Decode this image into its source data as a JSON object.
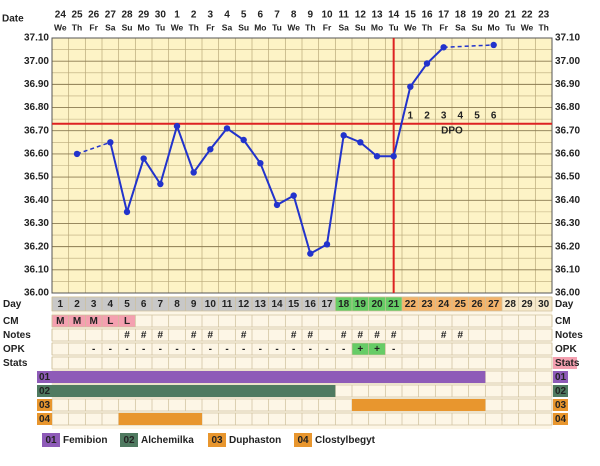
{
  "chart_data": {
    "type": "line",
    "date_label": "Date",
    "dates": [
      24,
      25,
      26,
      27,
      28,
      29,
      30,
      1,
      2,
      3,
      4,
      5,
      6,
      7,
      8,
      9,
      10,
      11,
      12,
      13,
      14,
      15,
      16,
      17,
      18,
      19,
      20,
      21,
      22,
      23
    ],
    "weekdays": [
      "We",
      "Th",
      "Fr",
      "Sa",
      "Su",
      "Mo",
      "Tu",
      "We",
      "Th",
      "Fr",
      "Sa",
      "Su",
      "Mo",
      "Tu",
      "We",
      "Th",
      "Fr",
      "Sa",
      "Su",
      "Mo",
      "Tu",
      "We",
      "Th",
      "Fr",
      "Sa",
      "Su",
      "Mo",
      "Tu",
      "We",
      "Th"
    ],
    "day_label": "Day",
    "categories": [
      1,
      2,
      3,
      4,
      5,
      6,
      7,
      8,
      9,
      10,
      11,
      12,
      13,
      14,
      15,
      16,
      17,
      18,
      19,
      20,
      21,
      22,
      23,
      24,
      25,
      26,
      27,
      28,
      29,
      30
    ],
    "day_colors": [
      "#c8c8c8",
      "#c8c8c8",
      "#c8c8c8",
      "#c8c8c8",
      "#c8c8c8",
      "#c8c8c8",
      "#c8c8c8",
      "#c8c8c8",
      "#c8c8c8",
      "#c8c8c8",
      "#c8c8c8",
      "#c8c8c8",
      "#c8c8c8",
      "#c8c8c8",
      "#c8c8c8",
      "#c8c8c8",
      "#c8c8c8",
      "#66cc66",
      "#66cc66",
      "#66cc66",
      "#66cc66",
      "#f3b36b",
      "#f3b36b",
      "#f3b36b",
      "#f3b36b",
      "#f3b36b",
      "#f3b36b",
      "#f7e9cc",
      "#f7e9cc",
      "#f7e9cc"
    ],
    "series": [
      {
        "color": "#2233cc",
        "values": [
          null,
          36.6,
          null,
          36.65,
          36.35,
          36.58,
          36.47,
          36.72,
          36.52,
          36.62,
          36.71,
          36.66,
          36.56,
          36.38,
          36.42,
          36.17,
          36.21,
          36.68,
          36.65,
          36.59,
          36.59,
          36.89,
          36.99,
          37.06,
          null,
          null,
          37.07,
          null,
          null,
          null
        ]
      }
    ],
    "ylim": [
      36.0,
      37.1
    ],
    "yticks": [
      {
        "value": 36.0,
        "label": "36.00"
      },
      {
        "value": 36.1,
        "label": "36.10"
      },
      {
        "value": 36.2,
        "label": "36.20"
      },
      {
        "value": 36.3,
        "label": "36.30"
      },
      {
        "value": 36.4,
        "label": "36.40"
      },
      {
        "value": 36.5,
        "label": "36.50"
      },
      {
        "value": 36.6,
        "label": "36.60"
      },
      {
        "value": 36.7,
        "label": "36.70"
      },
      {
        "value": 36.8,
        "label": "36.80"
      },
      {
        "value": 36.9,
        "label": "36.90"
      },
      {
        "value": 37.0,
        "label": "37.00"
      },
      {
        "value": 37.1,
        "label": "37.10"
      }
    ],
    "grid": true,
    "coverline": 36.73,
    "ovulation_day": 21,
    "line_color": "#dd2222",
    "dpo_label": "DPO",
    "dpo": [
      1,
      2,
      3,
      4,
      5,
      6
    ],
    "cm": {
      "label": "CM",
      "color": "#f4a0b0",
      "values": [
        "M",
        "M",
        "M",
        "L",
        "L",
        null,
        null,
        null,
        null,
        null,
        null,
        null,
        null,
        null,
        null,
        null,
        null,
        null,
        null,
        null,
        null,
        null,
        null,
        null,
        null,
        null,
        null,
        null,
        null,
        null
      ]
    },
    "notes": {
      "label": "Notes",
      "values": [
        null,
        null,
        null,
        null,
        "#",
        "#",
        "#",
        null,
        "#",
        "#",
        null,
        "#",
        null,
        null,
        "#",
        "#",
        null,
        "#",
        "#",
        "#",
        "#",
        null,
        null,
        "#",
        "#",
        null,
        null,
        null,
        null,
        null
      ]
    },
    "opk": {
      "label": "OPK",
      "color": "#66cc66",
      "values": [
        null,
        null,
        "-",
        "-",
        "-",
        "-",
        "-",
        "-",
        "-",
        "-",
        "-",
        "-",
        "-",
        "-",
        "-",
        "-",
        "-",
        "-",
        "+",
        "+",
        "-",
        null,
        null,
        null,
        null,
        null,
        null,
        null,
        null,
        null
      ]
    },
    "stats": {
      "label": "Stats"
    },
    "medications": [
      {
        "code": "01",
        "name": "Femibion",
        "color": "#8e5bb8",
        "start": 1,
        "end": 26
      },
      {
        "code": "02",
        "name": "Alchemilka",
        "color": "#4f7a60",
        "start": 1,
        "end": 17
      },
      {
        "code": "03",
        "name": "Duphaston",
        "color": "#e8962e",
        "start": 19,
        "end": 26
      },
      {
        "code": "04",
        "name": "Clostylbegyt",
        "color": "#e8962e",
        "start": 5,
        "end": 9
      }
    ]
  }
}
